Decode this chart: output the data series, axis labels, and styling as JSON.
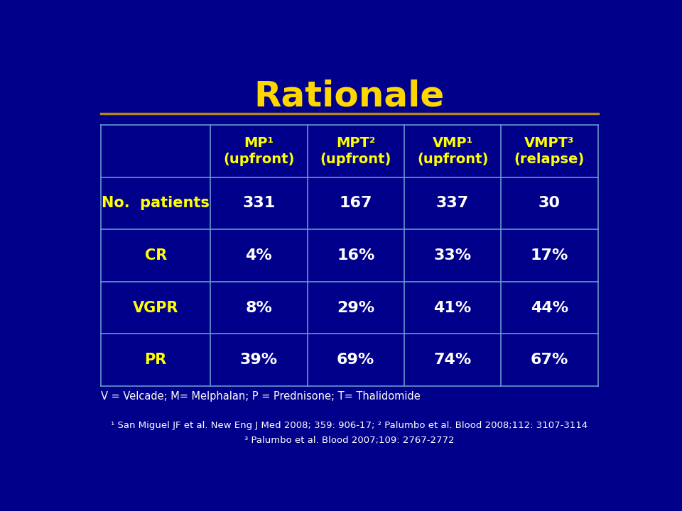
{
  "title": "Rationale",
  "title_color": "#FFD700",
  "title_fontsize": 36,
  "bg_color": "#00008B",
  "line_color": "#B8860B",
  "table_line_color": "#6699CC",
  "col_headers": [
    "MP¹\n(upfront)",
    "MPT²\n(upfront)",
    "VMP¹\n(upfront)",
    "VMPT³\n(relapse)"
  ],
  "row_labels": [
    "No.  patients",
    "CR",
    "VGPR",
    "PR"
  ],
  "data": [
    [
      "331",
      "167",
      "337",
      "30"
    ],
    [
      "4%",
      "16%",
      "33%",
      "17%"
    ],
    [
      "8%",
      "29%",
      "41%",
      "44%"
    ],
    [
      "39%",
      "69%",
      "74%",
      "67%"
    ]
  ],
  "yellow_color": "#FFFF00",
  "white_color": "#FFFFFF",
  "footnote1": "V = Velcade; M= Melphalan; P = Prednisone; T= Thalidomide",
  "footnote2": "¹ San Miguel JF et al. New Eng J Med 2008; 359: 906-17; ² Palumbo et al. Blood 2008;112: 3107-3114",
  "footnote3": "³ Palumbo et al. Blood 2007;109: 2767-2772"
}
